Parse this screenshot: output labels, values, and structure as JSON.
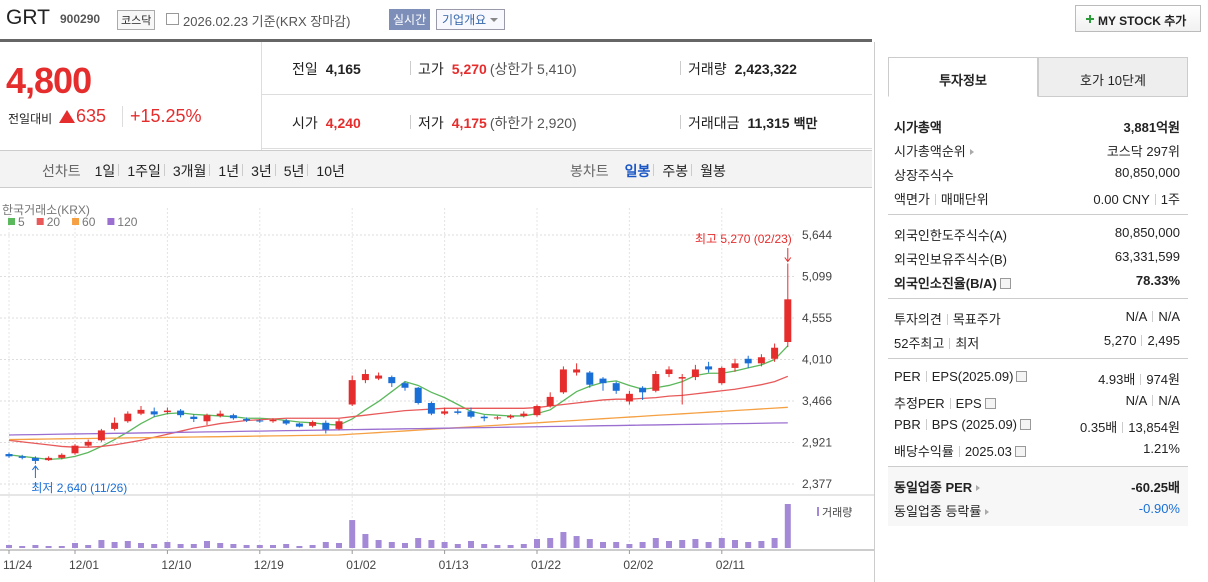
{
  "header": {
    "name": "GRT",
    "code": "900290",
    "market": "코스닥",
    "date": "2026.02.23 기준(KRX 장마감)",
    "realtime": "실시간",
    "company": "기업개요",
    "my_stock": "MY STOCK 추가"
  },
  "price": {
    "current": "4,800",
    "change_label": "전일대비",
    "change": "635",
    "change_rate": "+15.25%"
  },
  "summary": [
    [
      {
        "label": "전일",
        "value": "4,165"
      },
      {
        "label": "고가",
        "value": "5,270",
        "note": "(상한가 5,410)",
        "color": "#e52d2d"
      },
      {
        "label": "거래량",
        "value": "2,423,322"
      }
    ],
    [
      {
        "label": "시가",
        "value": "4,240",
        "color": "#e52d2d"
      },
      {
        "label": "저가",
        "value": "4,175",
        "note": "(하한가 2,920)",
        "color": "#e52d2d"
      },
      {
        "label": "거래대금",
        "value": "11,315",
        "unit": "백만"
      }
    ]
  ],
  "period_tabs": {
    "line_label": "선차트",
    "line": [
      "1일",
      "1주일",
      "3개월",
      "1년",
      "3년",
      "5년",
      "10년"
    ],
    "candle_label": "봉차트",
    "candle": [
      "일봉",
      "주봉",
      "월봉"
    ],
    "selected_candle": 0
  },
  "info_tabs": {
    "tabs": [
      "투자정보",
      "호가 10단계"
    ],
    "selected": 0
  },
  "info": [
    [
      {
        "label": [
          "시가총액"
        ],
        "value": [
          "3,881억원"
        ],
        "bold": true
      },
      {
        "label": [
          "시가총액순위"
        ],
        "arrow": true,
        "value": [
          "코스닥 297위"
        ]
      },
      {
        "label": [
          "상장주식수"
        ],
        "value": [
          "80,850,000"
        ]
      },
      {
        "label": [
          "액면가",
          "매매단위"
        ],
        "value": [
          "0.00 CNY",
          "1주"
        ]
      }
    ],
    [
      {
        "label": [
          "외국인한도주식수(A)"
        ],
        "value": [
          "80,850,000"
        ]
      },
      {
        "label": [
          "외국인보유주식수(B)"
        ],
        "value": [
          "63,331,599"
        ]
      },
      {
        "label": [
          "외국인소진율(B/A)"
        ],
        "help": true,
        "value": [
          "78.33%"
        ],
        "bold": true
      }
    ],
    [
      {
        "label": [
          "투자의견",
          "목표주가"
        ],
        "value": [
          "N/A",
          "N/A"
        ]
      },
      {
        "label": [
          "52주최고",
          "최저"
        ],
        "value": [
          "5,270",
          "2,495"
        ]
      }
    ],
    [
      {
        "label": [
          "PER",
          "EPS(2025.09)"
        ],
        "help": true,
        "value": [
          "4.93배",
          "974원"
        ]
      },
      {
        "label": [
          "추정PER",
          "EPS"
        ],
        "help": true,
        "value": [
          "N/A",
          "N/A"
        ]
      },
      {
        "label": [
          "PBR",
          "BPS (2025.09)"
        ],
        "help": true,
        "value": [
          "0.35배",
          "13,854원"
        ]
      },
      {
        "label": [
          "배당수익률",
          "2025.03"
        ],
        "help": true,
        "value": [
          "1.21%"
        ]
      }
    ],
    [
      {
        "label": [
          "동일업종 PER"
        ],
        "arrow": true,
        "value": [
          "-60.25배"
        ],
        "bold": true
      },
      {
        "label": [
          "동일업종 등락률"
        ],
        "arrow": true,
        "value": [
          "-0.90%"
        ],
        "color": "#1a6fd6"
      }
    ]
  ],
  "chart": {
    "type": "candlestick",
    "source": "한국거래소(KRX)",
    "volume_label": "거래량",
    "high_note": "최고 5,270 (02/23)",
    "low_note": "최저 2,640 (11/26)",
    "up_color": "#e52d2d",
    "down_color": "#1a6fd6",
    "volume_color": "#a48ad6",
    "grid": true,
    "ylim": [
      2377,
      5644
    ],
    "yticks": [
      {
        "value": 2377,
        "label": "2,377"
      },
      {
        "value": 2921,
        "label": "2,921"
      },
      {
        "value": 3466,
        "label": "3,466"
      },
      {
        "value": 4010,
        "label": "4,010"
      },
      {
        "value": 4555,
        "label": "4,555"
      },
      {
        "value": 5099,
        "label": "5,099"
      },
      {
        "value": 5644,
        "label": "5,644"
      }
    ],
    "categories": [
      "11/24",
      null,
      null,
      null,
      null,
      "12/01",
      null,
      null,
      null,
      null,
      null,
      null,
      "12/10",
      null,
      null,
      null,
      null,
      null,
      null,
      "12/19",
      null,
      null,
      null,
      null,
      null,
      null,
      "01/02",
      null,
      null,
      null,
      null,
      null,
      null,
      "01/13",
      null,
      null,
      null,
      null,
      null,
      null,
      "01/22",
      null,
      null,
      null,
      null,
      null,
      null,
      "02/02",
      null,
      null,
      null,
      null,
      null,
      null,
      "02/11",
      null,
      null,
      null,
      null,
      null
    ],
    "open": [
      2770,
      2740,
      2720,
      2690,
      2720,
      2780,
      2880,
      2950,
      3100,
      3200,
      3300,
      3330,
      3320,
      3340,
      3260,
      3200,
      3270,
      3280,
      3230,
      3210,
      3200,
      3210,
      3170,
      3140,
      3180,
      3100,
      3420,
      3740,
      3760,
      3780,
      3700,
      3640,
      3440,
      3300,
      3330,
      3330,
      3260,
      3240,
      3250,
      3270,
      3280,
      3400,
      3580,
      3840,
      3840,
      3760,
      3700,
      3460,
      3640,
      3600,
      3820,
      3760,
      3780,
      3920,
      3700,
      3900,
      4020,
      3960,
      4020,
      4240
    ],
    "high": [
      2790,
      2760,
      2740,
      2740,
      2780,
      2900,
      2960,
      3100,
      3250,
      3330,
      3400,
      3380,
      3380,
      3360,
      3290,
      3300,
      3340,
      3300,
      3250,
      3230,
      3240,
      3230,
      3180,
      3210,
      3210,
      3230,
      3800,
      3880,
      3840,
      3800,
      3720,
      3650,
      3460,
      3380,
      3360,
      3380,
      3280,
      3270,
      3290,
      3330,
      3420,
      3580,
      3920,
      3960,
      3860,
      3780,
      3720,
      3600,
      3660,
      3860,
      3920,
      3820,
      3940,
      3980,
      3920,
      4020,
      4060,
      4080,
      4220,
      5270
    ],
    "low": [
      2720,
      2700,
      2640,
      2680,
      2700,
      2760,
      2860,
      2930,
      3080,
      3180,
      3280,
      3260,
      3290,
      3250,
      3190,
      3150,
      3250,
      3220,
      3190,
      3180,
      3180,
      3150,
      3120,
      3120,
      3040,
      3080,
      3400,
      3700,
      3740,
      3650,
      3600,
      3420,
      3280,
      3280,
      3290,
      3240,
      3200,
      3220,
      3230,
      3250,
      3260,
      3380,
      3560,
      3800,
      3640,
      3600,
      3560,
      3420,
      3480,
      3580,
      3780,
      3420,
      3740,
      3840,
      3680,
      3850,
      3900,
      3920,
      3980,
      4175
    ],
    "close": [
      2740,
      2720,
      2680,
      2720,
      2760,
      2880,
      2930,
      3080,
      3180,
      3300,
      3350,
      3290,
      3340,
      3280,
      3230,
      3280,
      3300,
      3240,
      3210,
      3200,
      3220,
      3170,
      3130,
      3190,
      3090,
      3200,
      3740,
      3820,
      3800,
      3700,
      3640,
      3440,
      3300,
      3330,
      3310,
      3260,
      3240,
      3250,
      3270,
      3300,
      3400,
      3520,
      3880,
      3880,
      3680,
      3700,
      3600,
      3560,
      3580,
      3820,
      3880,
      3780,
      3880,
      3880,
      3900,
      3960,
      3960,
      4040,
      4165,
      4800
    ],
    "volume": [
      165000,
      110000,
      165000,
      110000,
      110000,
      275000,
      165000,
      440000,
      330000,
      385000,
      275000,
      220000,
      330000,
      220000,
      220000,
      385000,
      275000,
      220000,
      165000,
      165000,
      165000,
      220000,
      110000,
      165000,
      330000,
      275000,
      1540000,
      770000,
      440000,
      330000,
      275000,
      550000,
      440000,
      330000,
      220000,
      385000,
      220000,
      165000,
      165000,
      220000,
      495000,
      550000,
      880000,
      660000,
      495000,
      330000,
      330000,
      220000,
      330000,
      550000,
      385000,
      440000,
      495000,
      330000,
      550000,
      440000,
      330000,
      385000,
      550000,
      2423322
    ],
    "ma": [
      {
        "name": "5",
        "color": "#5cb85c",
        "values": [
          2760,
          2740,
          2720,
          2700,
          2710,
          2740,
          2790,
          2870,
          2960,
          3060,
          3170,
          3260,
          3300,
          3310,
          3290,
          3280,
          3270,
          3260,
          3240,
          3240,
          3230,
          3210,
          3190,
          3180,
          3160,
          3150,
          3230,
          3350,
          3460,
          3590,
          3720,
          3670,
          3580,
          3510,
          3420,
          3330,
          3290,
          3280,
          3270,
          3270,
          3300,
          3350,
          3470,
          3590,
          3660,
          3710,
          3730,
          3670,
          3620,
          3640,
          3670,
          3720,
          3800,
          3830,
          3830,
          3860,
          3900,
          3940,
          4010,
          4190
        ]
      },
      {
        "name": "20",
        "color": "#e8595a",
        "values": [
          2950,
          2930,
          2910,
          2890,
          2870,
          2860,
          2860,
          2870,
          2890,
          2920,
          2950,
          2990,
          3030,
          3070,
          3110,
          3140,
          3170,
          3190,
          3210,
          3220,
          3230,
          3240,
          3240,
          3240,
          3240,
          3240,
          3260,
          3280,
          3300,
          3320,
          3340,
          3350,
          3360,
          3370,
          3370,
          3370,
          3370,
          3370,
          3370,
          3370,
          3380,
          3400,
          3420,
          3440,
          3460,
          3480,
          3490,
          3490,
          3500,
          3510,
          3530,
          3540,
          3560,
          3580,
          3600,
          3620,
          3650,
          3680,
          3720,
          3790
        ]
      },
      {
        "name": "60",
        "color": "#f5a043",
        "values": [
          2960,
          2962,
          2965,
          2967,
          2970,
          2972,
          2974,
          2977,
          2979,
          2982,
          2984,
          2986,
          2989,
          2991,
          2994,
          2996,
          2998,
          3001,
          3003,
          3006,
          3008,
          3010,
          3013,
          3015,
          3018,
          3020,
          3031,
          3041,
          3052,
          3063,
          3073,
          3084,
          3095,
          3106,
          3116,
          3127,
          3138,
          3148,
          3159,
          3170,
          3180,
          3191,
          3202,
          3212,
          3223,
          3234,
          3245,
          3255,
          3266,
          3277,
          3287,
          3298,
          3309,
          3319,
          3330,
          3341,
          3351,
          3362,
          3373,
          3383
        ]
      },
      {
        "name": "120",
        "color": "#9b6fd0",
        "values": [
          3020,
          3023,
          3025,
          3028,
          3031,
          3034,
          3036,
          3039,
          3042,
          3044,
          3047,
          3050,
          3052,
          3055,
          3058,
          3061,
          3063,
          3066,
          3069,
          3071,
          3074,
          3077,
          3079,
          3082,
          3085,
          3088,
          3090,
          3093,
          3096,
          3098,
          3101,
          3104,
          3106,
          3109,
          3112,
          3115,
          3117,
          3120,
          3123,
          3125,
          3128,
          3131,
          3133,
          3136,
          3139,
          3142,
          3144,
          3147,
          3150,
          3152,
          3155,
          3158,
          3160,
          3163,
          3166,
          3169,
          3171,
          3174,
          3177,
          3179
        ]
      }
    ]
  }
}
